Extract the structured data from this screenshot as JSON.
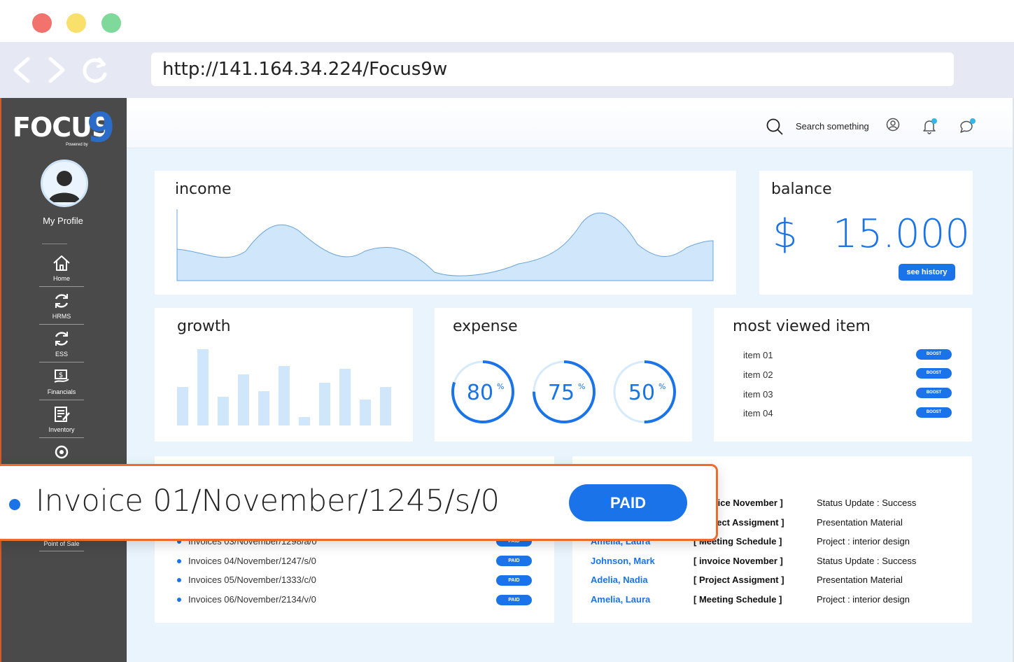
{
  "browser": {
    "url": "http://141.164.34.224/Focus9w"
  },
  "sidebar": {
    "logo_text": "FOCUS",
    "logo_nine": "9",
    "logo_powered": "Powered by",
    "profile_label": "My Profile",
    "items": [
      {
        "label": "Home",
        "icon": "home-icon"
      },
      {
        "label": "HRMS",
        "icon": "sync-icon"
      },
      {
        "label": "ESS",
        "icon": "sync-icon"
      },
      {
        "label": "Financials",
        "icon": "financials-icon"
      },
      {
        "label": "Inventory",
        "icon": "inventory-icon"
      },
      {
        "label": "",
        "icon": "sync-icon"
      },
      {
        "label": "Point of Sale",
        "icon": "pos-icon"
      }
    ]
  },
  "topbar": {
    "search_placeholder": "Search something"
  },
  "income": {
    "title": "income"
  },
  "balance": {
    "title": "balance",
    "currency": "$",
    "amount": "15.000",
    "button": "see history"
  },
  "growth": {
    "title": "growth"
  },
  "expense": {
    "title": "expense",
    "gauges": [
      {
        "value": "80",
        "unit": "%",
        "fraction": 0.8
      },
      {
        "value": "75",
        "unit": "%",
        "fraction": 0.75
      },
      {
        "value": "50",
        "unit": "%",
        "fraction": 0.5
      }
    ]
  },
  "most_viewed": {
    "title": "most viewed item",
    "items": [
      {
        "label": "item 01",
        "button": "BOOST"
      },
      {
        "label": "item 02",
        "button": "BOOST"
      },
      {
        "label": "item 03",
        "button": "BOOST"
      },
      {
        "label": "item 04",
        "button": "BOOST"
      }
    ]
  },
  "invoices": {
    "rows": [
      {
        "label": "Invoices 03/November/1298/a/0",
        "status": "PAID"
      },
      {
        "label": "Invoices 04/November/1247/s/0",
        "status": "PAID"
      },
      {
        "label": "Invoices 05/November/1333/c/0",
        "status": "PAID"
      },
      {
        "label": "Invoices 06/November/2134/v/0",
        "status": "PAID"
      }
    ]
  },
  "activity": {
    "rows": [
      {
        "name": "",
        "task": "[ invoice November ]",
        "status": "Status Update : Success"
      },
      {
        "name": "",
        "task": "[ Project Assigment ]",
        "status": "Presentation Material"
      },
      {
        "name": "Amelia, Laura",
        "task": "[ Meeting Schedule ]",
        "status": "Project : interior design"
      },
      {
        "name": "Johnson, Mark",
        "task": "[ invoice November ]",
        "status": "Status Update : Success"
      },
      {
        "name": "Adelia, Nadia",
        "task": "[ Project Assigment ]",
        "status": "Presentation Material"
      },
      {
        "name": "Amelia, Laura",
        "task": "[ Meeting Schedule ]",
        "status": "Project : interior design"
      }
    ]
  },
  "popup": {
    "invoice": "Invoice 01/November/1245/s/0",
    "status": "PAID"
  },
  "colors": {
    "accent": "#1a73e8",
    "sidebar": "#4a4a4a",
    "highlight_border": "#ef6a2b",
    "chart_fill": "#cfe6fb"
  }
}
